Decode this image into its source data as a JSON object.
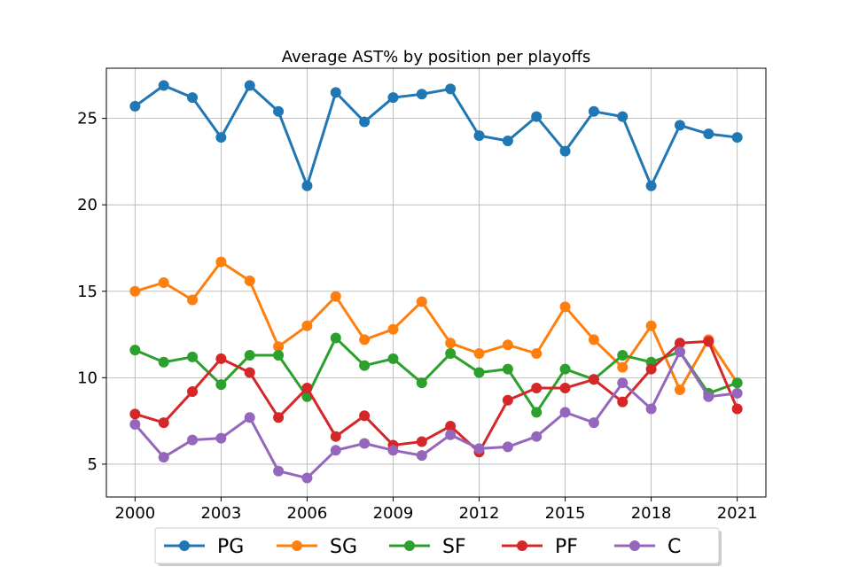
{
  "chart_data": {
    "type": "line",
    "title": "Average AST% by position per playoffs",
    "xlabel": "",
    "ylabel": "",
    "x": [
      2000,
      2001,
      2002,
      2003,
      2004,
      2005,
      2006,
      2007,
      2008,
      2009,
      2010,
      2011,
      2012,
      2013,
      2014,
      2015,
      2016,
      2017,
      2018,
      2019,
      2020,
      2021
    ],
    "xlim": [
      1999.0,
      2022.0
    ],
    "ylim": [
      3.1,
      27.9
    ],
    "xticks": [
      2000,
      2003,
      2006,
      2009,
      2012,
      2015,
      2018,
      2021
    ],
    "yticks": [
      5,
      10,
      15,
      20,
      25
    ],
    "grid": true,
    "legend_position": "bottom-center",
    "series": [
      {
        "name": "PG",
        "color": "#1f77b4",
        "values": [
          25.7,
          26.9,
          26.2,
          23.9,
          26.9,
          25.4,
          21.1,
          26.5,
          24.8,
          26.2,
          26.4,
          26.7,
          24.0,
          23.7,
          25.1,
          23.1,
          25.4,
          25.1,
          21.1,
          24.6,
          24.1,
          23.9
        ]
      },
      {
        "name": "SG",
        "color": "#ff7f0e",
        "values": [
          15.0,
          15.5,
          14.5,
          16.7,
          15.6,
          11.8,
          13.0,
          14.7,
          12.2,
          12.8,
          14.4,
          12.0,
          11.4,
          11.9,
          11.4,
          14.1,
          12.2,
          10.6,
          13.0,
          9.3,
          12.2,
          9.7
        ]
      },
      {
        "name": "SF",
        "color": "#2ca02c",
        "values": [
          11.6,
          10.9,
          11.2,
          9.6,
          11.3,
          11.3,
          8.9,
          12.3,
          10.7,
          11.1,
          9.7,
          11.4,
          10.3,
          10.5,
          8.0,
          10.5,
          9.9,
          11.3,
          10.9,
          11.5,
          9.1,
          9.7
        ]
      },
      {
        "name": "PF",
        "color": "#d62728",
        "values": [
          7.9,
          7.4,
          9.2,
          11.1,
          10.3,
          7.7,
          9.4,
          6.6,
          7.8,
          6.1,
          6.3,
          7.2,
          5.7,
          8.7,
          9.4,
          9.4,
          9.9,
          8.6,
          10.5,
          12.0,
          12.1,
          8.2
        ]
      },
      {
        "name": "C",
        "color": "#9467bd",
        "values": [
          7.3,
          5.4,
          6.4,
          6.5,
          7.7,
          4.6,
          4.2,
          5.8,
          6.2,
          5.8,
          5.5,
          6.7,
          5.9,
          6.0,
          6.6,
          8.0,
          7.4,
          9.7,
          8.2,
          11.5,
          8.9,
          9.1
        ]
      }
    ]
  }
}
